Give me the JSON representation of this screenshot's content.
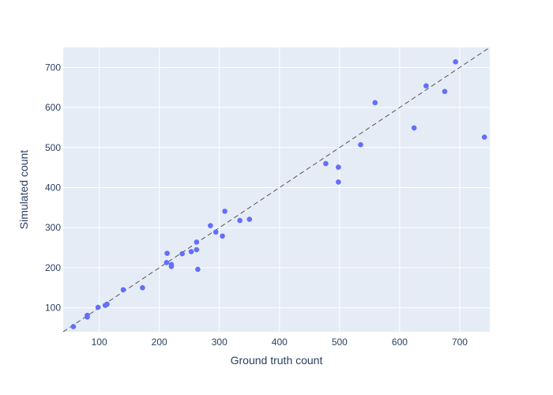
{
  "chart_data": {
    "type": "scatter",
    "xlabel": "Ground truth count",
    "ylabel": "Simulated count",
    "xlim": [
      40,
      750
    ],
    "ylim": [
      40,
      750
    ],
    "x_ticks": [
      100,
      200,
      300,
      400,
      500,
      600,
      700
    ],
    "y_ticks": [
      100,
      200,
      300,
      400,
      500,
      600,
      700
    ],
    "grid": true,
    "reference_line": {
      "style": "dashed",
      "from": [
        40,
        40
      ],
      "to": [
        750,
        750
      ]
    },
    "colors": {
      "plot_background": "#e5ecf6",
      "grid": "#ffffff",
      "marker": "#636efa",
      "reference_line": "#444444",
      "text": "#2a3f5f"
    },
    "series": [
      {
        "x": [
          57,
          80,
          80,
          98,
          110,
          113,
          140,
          172,
          212,
          213,
          220,
          220,
          238,
          253,
          262,
          262,
          264,
          285,
          294,
          305,
          309,
          334,
          350,
          477,
          498,
          498,
          535,
          559,
          624,
          644,
          675,
          693,
          741
        ],
        "y": [
          53,
          77,
          81,
          101,
          106,
          109,
          145,
          150,
          213,
          236,
          208,
          203,
          235,
          240,
          264,
          245,
          196,
          305,
          289,
          279,
          341,
          318,
          321,
          460,
          451,
          414,
          507,
          612,
          549,
          654,
          640,
          714,
          526
        ]
      }
    ]
  }
}
